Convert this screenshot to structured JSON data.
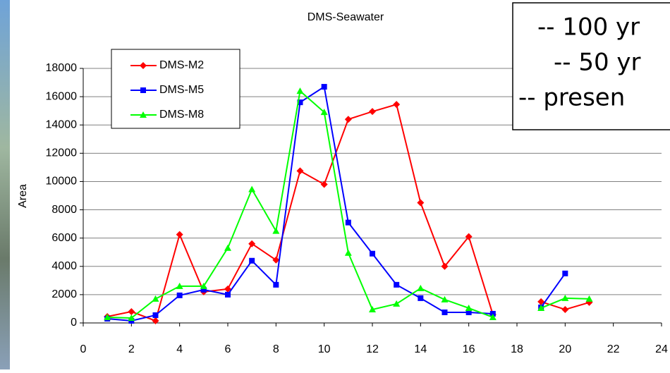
{
  "chart_data": {
    "type": "line",
    "title": "DMS-Seawater",
    "y_label": "Area",
    "x": [
      1,
      2,
      3,
      4,
      5,
      6,
      7,
      8,
      9,
      10,
      11,
      12,
      13,
      14,
      15,
      16,
      17,
      18,
      19,
      20,
      21
    ],
    "series": [
      {
        "name": "DMS-M2",
        "color": "#ff0000",
        "marker": "diamond",
        "values": [
          450,
          800,
          150,
          6250,
          2200,
          2400,
          5600,
          4450,
          10750,
          9800,
          14400,
          14950,
          15450,
          8500,
          4000,
          6100,
          600,
          null,
          1500,
          950,
          1450
        ]
      },
      {
        "name": "DMS-M5",
        "color": "#0000ff",
        "marker": "square",
        "values": [
          300,
          150,
          550,
          1950,
          2350,
          2000,
          4400,
          2700,
          15600,
          16700,
          7100,
          4900,
          2700,
          1750,
          750,
          750,
          650,
          null,
          1100,
          3500,
          null
        ]
      },
      {
        "name": "DMS-M8",
        "color": "#00ff00",
        "marker": "triangle",
        "values": [
          400,
          350,
          1700,
          2600,
          2600,
          5300,
          9450,
          6500,
          16400,
          14900,
          4950,
          950,
          1350,
          2450,
          1650,
          1050,
          400,
          null,
          1050,
          1750,
          1700
        ]
      }
    ],
    "xlim": [
      0,
      24
    ],
    "xticks": [
      0,
      2,
      4,
      6,
      8,
      10,
      12,
      14,
      16,
      18,
      20,
      22,
      24
    ],
    "ylim": [
      0,
      18000
    ],
    "yticks": [
      0,
      2000,
      4000,
      6000,
      8000,
      10000,
      12000,
      14000,
      16000,
      18000
    ],
    "grid": true,
    "annotations": [
      {
        "text": "-- 100 yr",
        "color": "#ff3300"
      },
      {
        "text": "-- 50 yr",
        "color": "#000099"
      },
      {
        "text": "-- presen",
        "color": "#008000"
      }
    ]
  }
}
